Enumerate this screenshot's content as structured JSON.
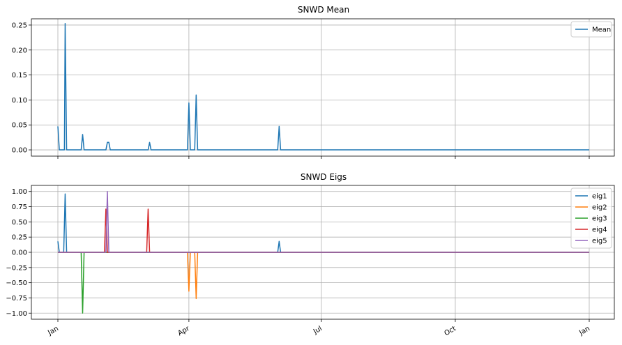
{
  "chart_data": [
    {
      "type": "line",
      "title": "SNWD Mean",
      "xlabel": "",
      "ylabel": "",
      "x_range_days": [
        0,
        365
      ],
      "ylim": [
        -0.0125,
        0.2625
      ],
      "yticks": [
        0.0,
        0.05,
        0.1,
        0.15,
        0.2,
        0.25
      ],
      "ytick_labels": [
        "0.00",
        "0.05",
        "0.10",
        "0.15",
        "0.20",
        "0.25"
      ],
      "xtick_days": [
        0,
        90,
        181,
        273,
        365
      ],
      "xtick_labels": [
        "",
        "",
        "",
        "",
        ""
      ],
      "grid": true,
      "legend": "top-right",
      "series": [
        {
          "name": "Mean",
          "color": "#1f77b4",
          "points": [
            [
              0,
              0.047
            ],
            [
              1,
              0.0
            ],
            [
              4,
              0.0
            ],
            [
              4.5,
              0.0
            ],
            [
              5,
              0.253
            ],
            [
              6,
              0.0
            ],
            [
              16,
              0.0
            ],
            [
              17,
              0.031
            ],
            [
              18,
              0.0
            ],
            [
              33,
              0.0
            ],
            [
              34,
              0.015
            ],
            [
              35,
              0.015
            ],
            [
              36,
              0.0
            ],
            [
              62,
              0.0
            ],
            [
              63,
              0.015
            ],
            [
              64,
              0.0
            ],
            [
              89,
              0.0
            ],
            [
              90,
              0.094
            ],
            [
              91,
              0.0
            ],
            [
              94,
              0.0
            ],
            [
              95,
              0.11
            ],
            [
              96,
              0.0
            ],
            [
              151,
              0.0
            ],
            [
              152,
              0.047
            ],
            [
              153,
              0.0
            ],
            [
              365,
              0.0
            ]
          ]
        }
      ]
    },
    {
      "type": "line",
      "title": "SNWD Eigs",
      "xlabel": "",
      "ylabel": "",
      "x_range_days": [
        0,
        365
      ],
      "ylim": [
        -1.1,
        1.1
      ],
      "yticks": [
        -1.0,
        -0.75,
        -0.5,
        -0.25,
        0.0,
        0.25,
        0.5,
        0.75,
        1.0
      ],
      "ytick_labels": [
        "−1.00",
        "−0.75",
        "−0.50",
        "−0.25",
        "0.00",
        "0.25",
        "0.50",
        "0.75",
        "1.00"
      ],
      "xtick_days": [
        0,
        90,
        181,
        273,
        365
      ],
      "xtick_labels": [
        "Jan",
        "Apr",
        "Jul",
        "Oct",
        "Jan"
      ],
      "grid": true,
      "legend": "top-right",
      "series": [
        {
          "name": "eig1",
          "color": "#1f77b4",
          "points": [
            [
              0,
              0.18
            ],
            [
              1,
              0.0
            ],
            [
              4,
              0.0
            ],
            [
              5,
              0.96
            ],
            [
              6,
              0.0
            ],
            [
              151,
              0.0
            ],
            [
              152,
              0.18
            ],
            [
              153,
              0.0
            ],
            [
              365,
              0.0
            ]
          ]
        },
        {
          "name": "eig2",
          "color": "#ff7f0e",
          "points": [
            [
              0,
              0.0
            ],
            [
              89,
              0.0
            ],
            [
              90,
              -0.64
            ],
            [
              91,
              0.0
            ],
            [
              94,
              0.0
            ],
            [
              95,
              -0.76
            ],
            [
              96,
              0.0
            ],
            [
              365,
              0.0
            ]
          ]
        },
        {
          "name": "eig3",
          "color": "#2ca02c",
          "points": [
            [
              0,
              0.0
            ],
            [
              16,
              0.0
            ],
            [
              17,
              -1.0
            ],
            [
              18,
              0.0
            ],
            [
              365,
              0.0
            ]
          ]
        },
        {
          "name": "eig4",
          "color": "#d62728",
          "points": [
            [
              0,
              0.0
            ],
            [
              32,
              0.0
            ],
            [
              33,
              0.71
            ],
            [
              34,
              0.0
            ],
            [
              61,
              0.0
            ],
            [
              62,
              0.71
            ],
            [
              63,
              0.0
            ],
            [
              365,
              0.0
            ]
          ]
        },
        {
          "name": "eig5",
          "color": "#9467bd",
          "points": [
            [
              0,
              0.0
            ],
            [
              33,
              0.0
            ],
            [
              34,
              1.0
            ],
            [
              35,
              0.0
            ],
            [
              365,
              0.0
            ]
          ]
        }
      ]
    }
  ]
}
